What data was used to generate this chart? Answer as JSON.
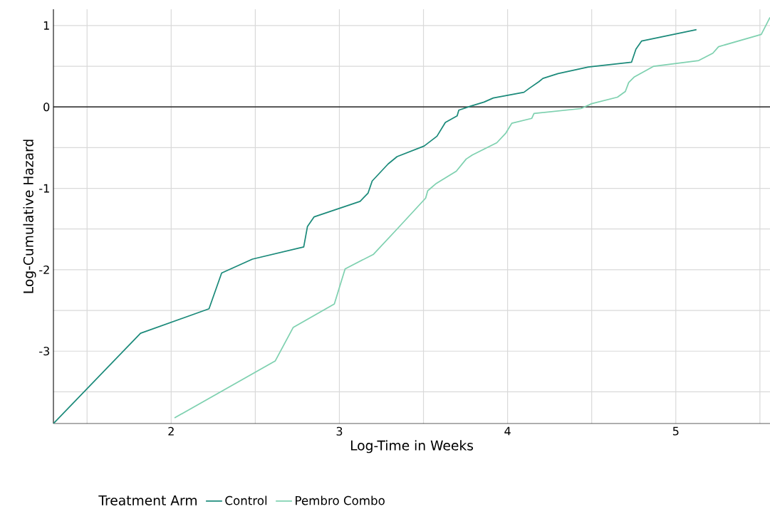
{
  "chart_data": {
    "type": "line",
    "xlabel": "Log-Time in Weeks",
    "ylabel": "Log-Cumulative Hazard",
    "legend_title": "Treatment Arm",
    "xlim": [
      1.3,
      5.56
    ],
    "ylim": [
      -3.89,
      1.2
    ],
    "xticks": [
      {
        "value": 1.5,
        "label": null
      },
      2,
      {
        "value": 2.5,
        "label": null
      },
      3,
      {
        "value": 3.5,
        "label": null
      },
      4,
      {
        "value": 4.5,
        "label": null
      },
      5,
      {
        "value": 5.5,
        "label": null
      }
    ],
    "yticks": [
      {
        "value": -3.5,
        "label": null
      },
      -3,
      {
        "value": -2.5,
        "label": null
      },
      -2,
      {
        "value": -1.5,
        "label": null
      },
      -1,
      {
        "value": -0.5,
        "label": null
      },
      0,
      {
        "value": 0.5,
        "label": null
      },
      1
    ],
    "grid": true,
    "legend": "bottom",
    "line_style": "solid",
    "marker": "none",
    "ref_lines": [
      {
        "axis": "y",
        "value": 0,
        "color": "#000000"
      }
    ],
    "series": [
      {
        "name": "Control",
        "color": "#1b8a7a",
        "x": [
          1.3,
          1.818,
          2.225,
          2.3,
          2.483,
          2.788,
          2.81,
          2.85,
          3.123,
          3.17,
          3.195,
          3.29,
          3.343,
          3.504,
          3.58,
          3.63,
          3.7,
          3.71,
          3.78,
          3.86,
          3.915,
          4.097,
          4.13,
          4.186,
          4.21,
          4.3,
          4.48,
          4.737,
          4.763,
          4.797,
          5.123
        ],
        "values": [
          -3.89,
          -2.78,
          -2.48,
          -2.04,
          -1.87,
          -1.72,
          -1.47,
          -1.35,
          -1.16,
          -1.06,
          -0.91,
          -0.7,
          -0.61,
          -0.48,
          -0.36,
          -0.19,
          -0.11,
          -0.04,
          0.01,
          0.06,
          0.11,
          0.18,
          0.23,
          0.31,
          0.35,
          0.41,
          0.49,
          0.55,
          0.71,
          0.81,
          0.95
        ]
      },
      {
        "name": "Pembro Combo",
        "color": "#7fd1b0",
        "x": [
          2.02,
          2.619,
          2.725,
          2.97,
          3.034,
          3.203,
          3.343,
          3.513,
          3.525,
          3.576,
          3.695,
          3.754,
          3.79,
          3.936,
          3.99,
          4.025,
          4.144,
          4.157,
          4.436,
          4.5,
          4.653,
          4.7,
          4.72,
          4.754,
          4.869,
          5.136,
          5.22,
          5.254,
          5.508,
          5.56
        ],
        "values": [
          -3.82,
          -3.12,
          -2.71,
          -2.42,
          -1.99,
          -1.81,
          -1.5,
          -1.12,
          -1.03,
          -0.94,
          -0.79,
          -0.64,
          -0.59,
          -0.44,
          -0.32,
          -0.2,
          -0.14,
          -0.08,
          -0.02,
          0.04,
          0.12,
          0.19,
          0.3,
          0.37,
          0.5,
          0.57,
          0.66,
          0.74,
          0.89,
          1.1
        ]
      }
    ]
  }
}
